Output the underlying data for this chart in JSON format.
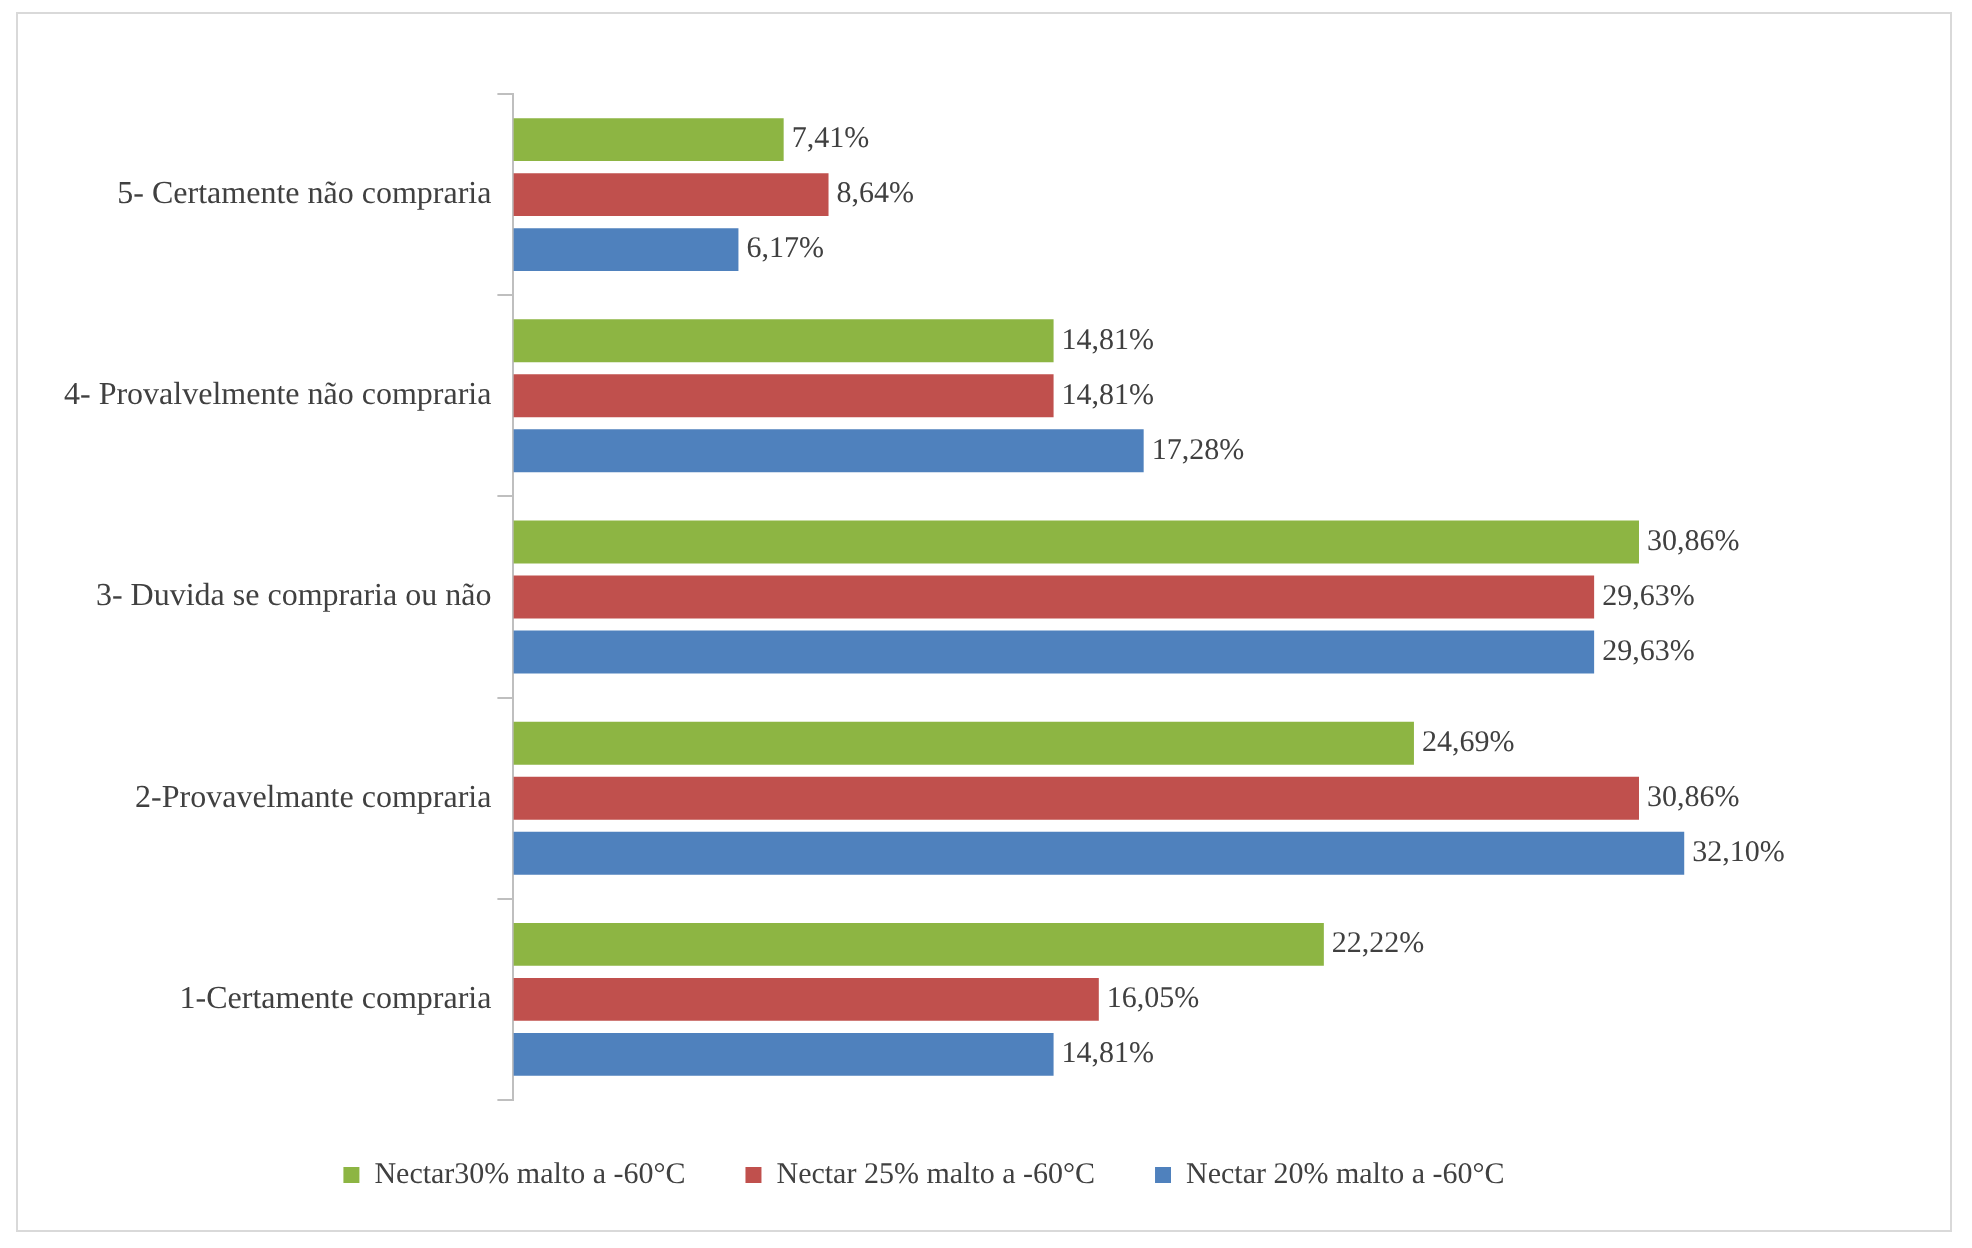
{
  "chart_data": {
    "type": "bar",
    "orientation": "horizontal",
    "legend": "bottom",
    "categories": [
      "5- Certamente não compraria",
      "4- Provalvelmente não compraria",
      "3- Duvida se compraria ou não",
      "2-Provavelmante compraria",
      "1-Certamente compraria"
    ],
    "series": [
      {
        "name": "Nectar30% malto a -60°C",
        "color": "#8db543",
        "values": [
          7.41,
          14.81,
          30.86,
          24.69,
          22.22
        ],
        "value_labels": [
          "7,41%",
          "14,81%",
          "30,86%",
          "24,69%",
          "22,22%"
        ]
      },
      {
        "name": "Nectar 25% malto a -60°C",
        "color": "#c0504d",
        "values": [
          8.64,
          14.81,
          29.63,
          30.86,
          16.05
        ],
        "value_labels": [
          "8,64%",
          "14,81%",
          "29,63%",
          "30,86%",
          "16,05%"
        ]
      },
      {
        "name": "Nectar 20% malto a -60°C",
        "color": "#4f81bd",
        "values": [
          6.17,
          17.28,
          29.63,
          32.1,
          14.81
        ],
        "value_labels": [
          "6,17%",
          "17,28%",
          "29,63%",
          "32,10%",
          "14,81%"
        ]
      }
    ]
  }
}
